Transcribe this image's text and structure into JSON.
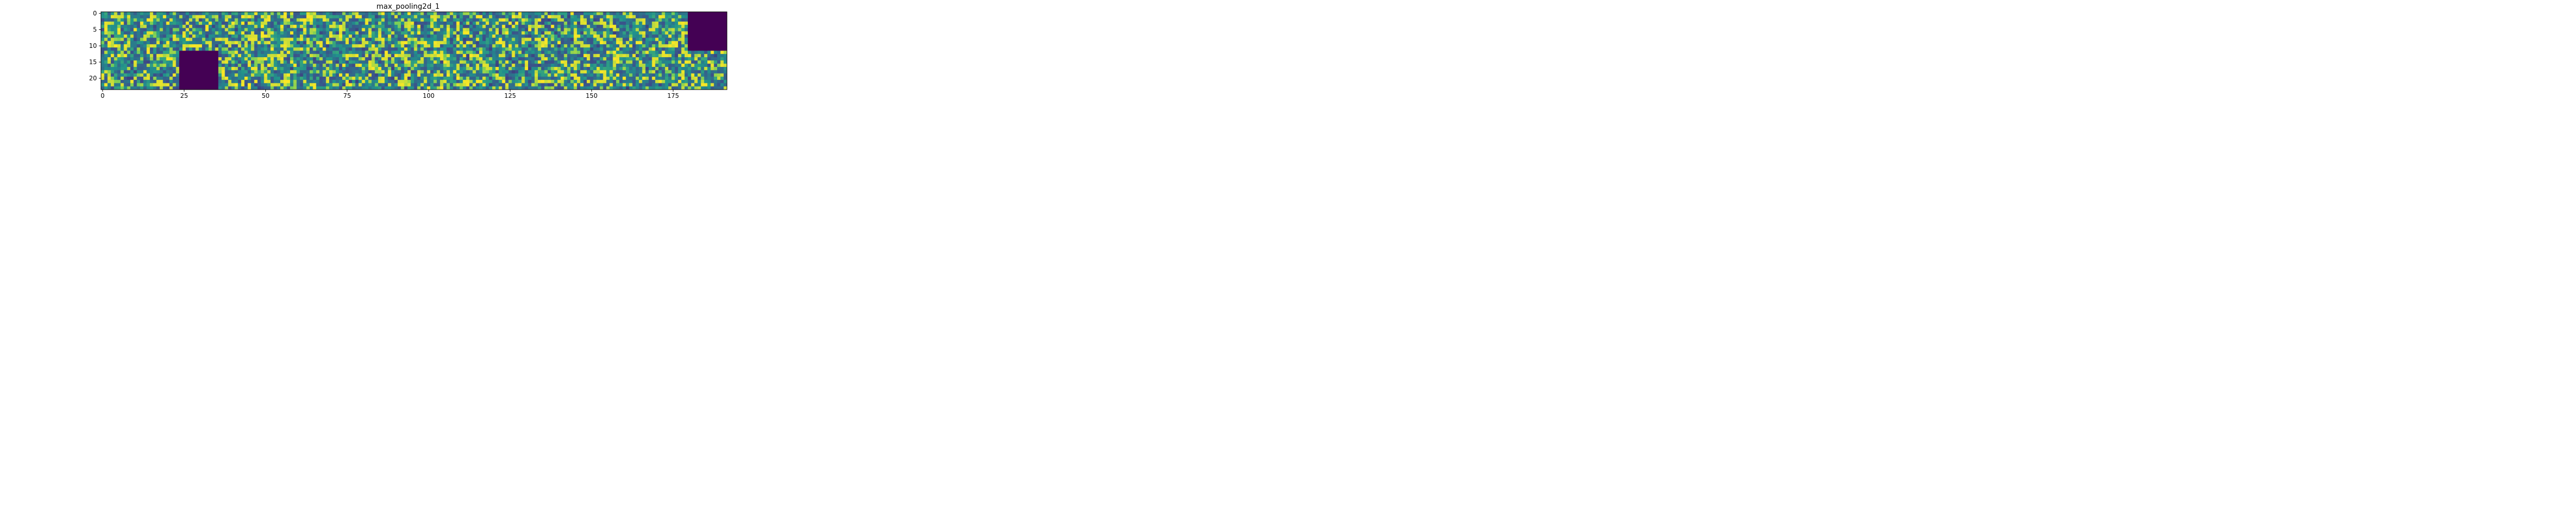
{
  "chart_data": {
    "type": "heatmap",
    "title": "max_pooling2d_1",
    "xlabel": "",
    "ylabel": "",
    "colormap": "viridis",
    "colors": {
      "low": "#440154",
      "mid": "#21918c",
      "high": "#fde725",
      "background": "#3b6e8c"
    },
    "xlim": [
      -0.5,
      191.5
    ],
    "ylim": [
      23.5,
      -0.5
    ],
    "x_ticks": [
      0,
      25,
      50,
      75,
      100,
      125,
      150,
      175
    ],
    "y_ticks": [
      0,
      5,
      10,
      15,
      20
    ],
    "x_tick_labels": [
      "0",
      "25",
      "50",
      "75",
      "100",
      "125",
      "150",
      "175"
    ],
    "y_tick_labels": [
      "0",
      "5",
      "10",
      "15",
      "20"
    ],
    "grid": false,
    "tile_size": 12,
    "tile_rows": 2,
    "tile_cols": 16,
    "feature_maps": 31,
    "empty_tiles": [
      {
        "row": 0,
        "col": 15
      },
      {
        "row": 1,
        "col": 2
      }
    ],
    "dead_tiles": [
      {
        "row": 0,
        "col": 15
      },
      {
        "row": 1,
        "col": 2
      }
    ]
  }
}
